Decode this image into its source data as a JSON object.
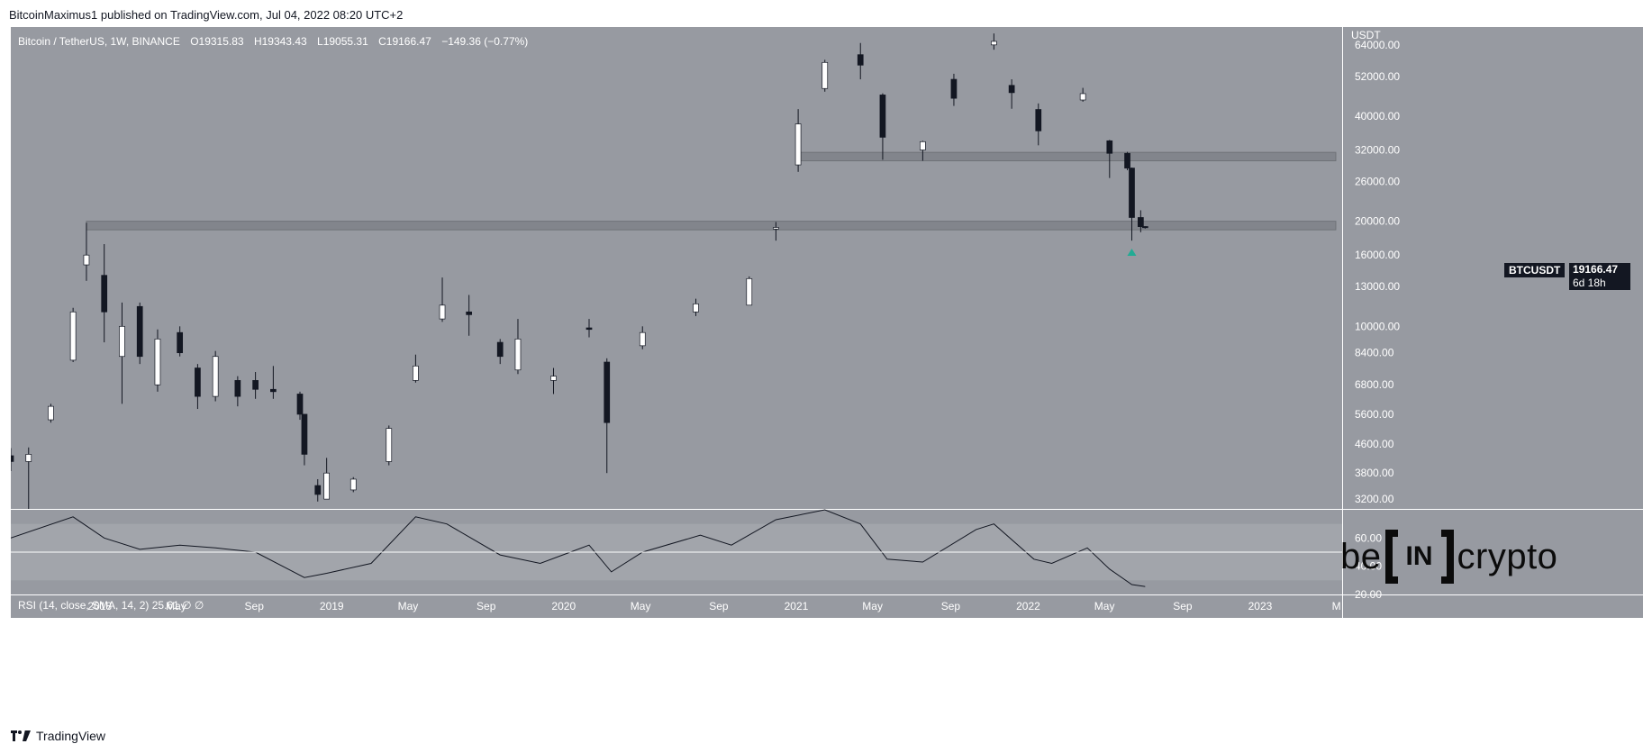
{
  "header": {
    "author": "BitcoinMaximus1",
    "published_text": "published on TradingView.com,",
    "date": "Jul 04, 2022 08:20 UTC+2"
  },
  "legend": {
    "symbol": "Bitcoin / TetherUS, 1W, BINANCE",
    "open_label": "O",
    "open": "19315.83",
    "high_label": "H",
    "high": "19343.43",
    "low_label": "L",
    "low": "19055.31",
    "close_label": "C",
    "close": "19166.47",
    "change": "−149.36 (−0.77%)"
  },
  "rsi_legend": "RSI (14, close, SMA, 14, 2)  25.61  ∅  ∅",
  "price_tag": {
    "symbol": "BTCUSDT",
    "price": "19166.47",
    "countdown": "6d 18h"
  },
  "watermark": {
    "left": "be",
    "middle": "IN",
    "right": "crypto"
  },
  "footer": {
    "brand": "TradingView"
  },
  "colors": {
    "pane_bg": "#979aa1",
    "up": "#ffffff",
    "down": "#131722",
    "zone": "#7e8188",
    "marker": "#22ab94"
  },
  "chart_data": {
    "type": "candlestick",
    "title": "Bitcoin / TetherUS, 1W, BINANCE",
    "currency_label": "USDT",
    "y_scale": "log",
    "ylim": [
      3000,
      72000
    ],
    "y_ticks": [
      64000,
      52000,
      40000,
      32000,
      26000,
      20000,
      16000,
      13000,
      10000,
      8400,
      6800,
      5600,
      4600,
      3800,
      3200
    ],
    "x_ticks": [
      {
        "label": "2018",
        "date": "2018-01-01"
      },
      {
        "label": "May",
        "date": "2018-05-01"
      },
      {
        "label": "Sep",
        "date": "2018-09-01"
      },
      {
        "label": "2019",
        "date": "2019-01-01"
      },
      {
        "label": "May",
        "date": "2019-05-01"
      },
      {
        "label": "Sep",
        "date": "2019-09-01"
      },
      {
        "label": "2020",
        "date": "2020-01-01"
      },
      {
        "label": "May",
        "date": "2020-05-01"
      },
      {
        "label": "Sep",
        "date": "2020-09-01"
      },
      {
        "label": "2021",
        "date": "2021-01-01"
      },
      {
        "label": "May",
        "date": "2021-05-01"
      },
      {
        "label": "Sep",
        "date": "2021-09-01"
      },
      {
        "label": "2022",
        "date": "2022-01-01"
      },
      {
        "label": "May",
        "date": "2022-05-01"
      },
      {
        "label": "Sep",
        "date": "2022-09-01"
      },
      {
        "label": "2023",
        "date": "2023-01-01"
      },
      {
        "label": "M",
        "date": "2023-05-01"
      }
    ],
    "x_start": "2017-08-14",
    "x_end": "2023-05-10",
    "support_zones": [
      {
        "name": "upper zone",
        "low": 29800,
        "high": 31500,
        "from": "2021-01-04",
        "to": "2023-04-30"
      },
      {
        "name": "lower zone",
        "low": 18900,
        "high": 20000,
        "from": "2017-12-11",
        "to": "2023-04-30"
      }
    ],
    "marker": {
      "date": "2022-06-13",
      "price": 16500,
      "shape": "triangle-up"
    },
    "series": [
      {
        "date": "2017-08-14",
        "open": 4260,
        "high": 4480,
        "low": 3850,
        "close": 4100
      },
      {
        "date": "2017-09-11",
        "open": 4100,
        "high": 4500,
        "low": 3000,
        "close": 4300
      },
      {
        "date": "2017-10-16",
        "open": 5400,
        "high": 6000,
        "low": 5300,
        "close": 5900
      },
      {
        "date": "2017-11-20",
        "open": 8000,
        "high": 11300,
        "low": 7900,
        "close": 11000
      },
      {
        "date": "2017-12-11",
        "open": 15000,
        "high": 19800,
        "low": 13500,
        "close": 16000
      },
      {
        "date": "2018-01-08",
        "open": 14000,
        "high": 17200,
        "low": 9000,
        "close": 11000
      },
      {
        "date": "2018-02-05",
        "open": 8200,
        "high": 11700,
        "low": 6000,
        "close": 10000
      },
      {
        "date": "2018-03-05",
        "open": 11400,
        "high": 11700,
        "low": 7800,
        "close": 8200
      },
      {
        "date": "2018-04-02",
        "open": 6800,
        "high": 9800,
        "low": 6500,
        "close": 9200
      },
      {
        "date": "2018-05-07",
        "open": 9600,
        "high": 10000,
        "low": 8200,
        "close": 8400
      },
      {
        "date": "2018-06-04",
        "open": 7600,
        "high": 7800,
        "low": 5800,
        "close": 6300
      },
      {
        "date": "2018-07-02",
        "open": 6300,
        "high": 8500,
        "low": 6100,
        "close": 8200
      },
      {
        "date": "2018-08-06",
        "open": 7000,
        "high": 7200,
        "low": 5900,
        "close": 6300
      },
      {
        "date": "2018-09-03",
        "open": 7000,
        "high": 7400,
        "low": 6200,
        "close": 6600
      },
      {
        "date": "2018-10-01",
        "open": 6600,
        "high": 7700,
        "low": 6200,
        "close": 6500
      },
      {
        "date": "2018-11-12",
        "open": 6400,
        "high": 6500,
        "low": 5400,
        "close": 5600
      },
      {
        "date": "2018-11-19",
        "open": 5600,
        "high": 5600,
        "low": 4000,
        "close": 4300
      },
      {
        "date": "2018-12-10",
        "open": 3500,
        "high": 3650,
        "low": 3150,
        "close": 3300
      },
      {
        "date": "2018-12-24",
        "open": 3200,
        "high": 4200,
        "low": 3500,
        "close": 3800
      },
      {
        "date": "2019-02-04",
        "open": 3400,
        "high": 3700,
        "low": 3350,
        "close": 3650
      },
      {
        "date": "2019-04-01",
        "open": 4100,
        "high": 5200,
        "low": 4000,
        "close": 5100
      },
      {
        "date": "2019-05-13",
        "open": 7000,
        "high": 8300,
        "low": 6900,
        "close": 7700
      },
      {
        "date": "2019-06-24",
        "open": 10500,
        "high": 13800,
        "low": 10300,
        "close": 11500
      },
      {
        "date": "2019-08-05",
        "open": 11000,
        "high": 12300,
        "low": 9400,
        "close": 10800
      },
      {
        "date": "2019-09-23",
        "open": 9000,
        "high": 9200,
        "low": 7800,
        "close": 8200
      },
      {
        "date": "2019-10-21",
        "open": 7500,
        "high": 10500,
        "low": 7300,
        "close": 9200
      },
      {
        "date": "2019-12-16",
        "open": 7000,
        "high": 7600,
        "low": 6400,
        "close": 7200
      },
      {
        "date": "2020-02-10",
        "open": 9900,
        "high": 10500,
        "low": 9300,
        "close": 9800
      },
      {
        "date": "2020-03-09",
        "open": 7900,
        "high": 8100,
        "low": 3800,
        "close": 5300
      },
      {
        "date": "2020-05-04",
        "open": 8800,
        "high": 10000,
        "low": 8600,
        "close": 9600
      },
      {
        "date": "2020-07-27",
        "open": 11000,
        "high": 12000,
        "low": 10700,
        "close": 11600
      },
      {
        "date": "2020-10-19",
        "open": 11500,
        "high": 13900,
        "low": 11500,
        "close": 13700
      },
      {
        "date": "2020-11-30",
        "open": 19000,
        "high": 19900,
        "low": 17600,
        "close": 19200
      },
      {
        "date": "2021-01-04",
        "open": 29000,
        "high": 41900,
        "low": 27700,
        "close": 38000
      },
      {
        "date": "2021-02-15",
        "open": 48000,
        "high": 58000,
        "low": 47000,
        "close": 57000
      },
      {
        "date": "2021-04-12",
        "open": 60000,
        "high": 64800,
        "low": 51000,
        "close": 56000
      },
      {
        "date": "2021-05-17",
        "open": 46000,
        "high": 46500,
        "low": 30000,
        "close": 34800
      },
      {
        "date": "2021-07-19",
        "open": 32000,
        "high": 34000,
        "low": 29800,
        "close": 33800
      },
      {
        "date": "2021-09-06",
        "open": 51000,
        "high": 52900,
        "low": 42800,
        "close": 45000
      },
      {
        "date": "2021-11-08",
        "open": 64000,
        "high": 69000,
        "low": 62000,
        "close": 65500
      },
      {
        "date": "2021-12-06",
        "open": 49000,
        "high": 51000,
        "low": 42000,
        "close": 46700
      },
      {
        "date": "2022-01-17",
        "open": 41800,
        "high": 43500,
        "low": 33000,
        "close": 36300
      },
      {
        "date": "2022-03-28",
        "open": 44500,
        "high": 48200,
        "low": 44000,
        "close": 46400
      },
      {
        "date": "2022-05-09",
        "open": 34000,
        "high": 34200,
        "low": 26600,
        "close": 31300
      },
      {
        "date": "2022-06-06",
        "open": 31300,
        "high": 31600,
        "low": 28000,
        "close": 28400
      },
      {
        "date": "2022-06-13",
        "open": 28400,
        "high": 28500,
        "low": 17600,
        "close": 20500
      },
      {
        "date": "2022-06-27",
        "open": 20500,
        "high": 21500,
        "low": 18600,
        "close": 19300
      },
      {
        "date": "2022-07-04",
        "open": 19315.83,
        "high": 19343.43,
        "low": 19055.31,
        "close": 19166.47
      }
    ],
    "rsi": {
      "label": "RSI (14, close, SMA, 14, 2)",
      "last_value": 25.61,
      "ylim": [
        20,
        80
      ],
      "y_ticks": [
        60,
        40,
        20
      ],
      "bands": [
        30,
        50,
        70
      ],
      "points": [
        {
          "date": "2017-08-14",
          "value": 60
        },
        {
          "date": "2017-11-20",
          "value": 75
        },
        {
          "date": "2018-01-08",
          "value": 60
        },
        {
          "date": "2018-03-05",
          "value": 52
        },
        {
          "date": "2018-05-07",
          "value": 55
        },
        {
          "date": "2018-07-02",
          "value": 53
        },
        {
          "date": "2018-09-03",
          "value": 50
        },
        {
          "date": "2018-11-19",
          "value": 32
        },
        {
          "date": "2018-12-24",
          "value": 35
        },
        {
          "date": "2019-03-04",
          "value": 42
        },
        {
          "date": "2019-05-13",
          "value": 75
        },
        {
          "date": "2019-07-01",
          "value": 70
        },
        {
          "date": "2019-09-23",
          "value": 48
        },
        {
          "date": "2019-11-25",
          "value": 42
        },
        {
          "date": "2020-02-10",
          "value": 55
        },
        {
          "date": "2020-03-16",
          "value": 36
        },
        {
          "date": "2020-05-04",
          "value": 50
        },
        {
          "date": "2020-08-03",
          "value": 62
        },
        {
          "date": "2020-09-21",
          "value": 55
        },
        {
          "date": "2020-11-30",
          "value": 73
        },
        {
          "date": "2021-02-15",
          "value": 85
        },
        {
          "date": "2021-04-12",
          "value": 70
        },
        {
          "date": "2021-05-24",
          "value": 45
        },
        {
          "date": "2021-07-19",
          "value": 43
        },
        {
          "date": "2021-10-11",
          "value": 66
        },
        {
          "date": "2021-11-08",
          "value": 70
        },
        {
          "date": "2022-01-10",
          "value": 45
        },
        {
          "date": "2022-02-07",
          "value": 42
        },
        {
          "date": "2022-04-04",
          "value": 53
        },
        {
          "date": "2022-05-09",
          "value": 38
        },
        {
          "date": "2022-06-13",
          "value": 27
        },
        {
          "date": "2022-07-04",
          "value": 25.61
        }
      ]
    }
  }
}
